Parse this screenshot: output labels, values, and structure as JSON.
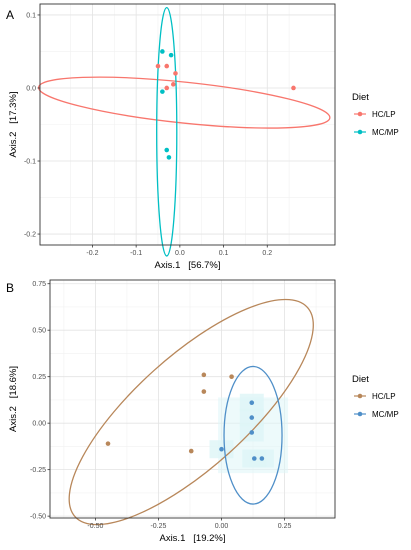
{
  "chart_data": [
    {
      "panel": "A",
      "type": "scatter",
      "xlabel": "Axis.1   [56.7%]",
      "ylabel": "Axis.2   [17.3%]",
      "xlim": [
        -0.32,
        0.355
      ],
      "ylim": [
        -0.215,
        0.115
      ],
      "xticks": [
        -0.2,
        -0.1,
        0.0,
        0.1,
        0.2
      ],
      "xtick_labels": [
        "-0.2",
        "-0.1",
        "0.0",
        "0.1",
        "0.2"
      ],
      "yticks": [
        -0.2,
        -0.1,
        0.0,
        0.1
      ],
      "ytick_labels": [
        "-0.2",
        "-0.1",
        "0.0",
        "0.1"
      ],
      "grid": true,
      "legend": {
        "title": "Diet",
        "position": "right",
        "entries": [
          "HC/LP",
          "MC/MP"
        ]
      },
      "series": [
        {
          "name": "HC/LP",
          "color": "#F8766D",
          "points": [
            [
              -0.05,
              0.03
            ],
            [
              -0.03,
              0.03
            ],
            [
              -0.01,
              0.02
            ],
            [
              -0.015,
              0.005
            ],
            [
              -0.03,
              0.0
            ],
            [
              0.26,
              0.0
            ]
          ]
        },
        {
          "name": "MC/MP",
          "color": "#00BFC4",
          "points": [
            [
              -0.04,
              0.05
            ],
            [
              -0.02,
              0.045
            ],
            [
              -0.04,
              -0.005
            ],
            [
              -0.03,
              -0.085
            ],
            [
              -0.025,
              -0.095
            ]
          ]
        }
      ],
      "ellipses": [
        {
          "series": "HC/LP",
          "cx": 0.01,
          "cy": -0.02,
          "rx": 0.335,
          "ry": 0.028,
          "angle_deg": -6,
          "color": "#F8766D"
        },
        {
          "series": "MC/MP",
          "cx": -0.03,
          "cy": -0.06,
          "rx": 0.023,
          "ry": 0.17,
          "angle_deg": 0,
          "color": "#00BFC4"
        }
      ]
    },
    {
      "panel": "B",
      "type": "scatter",
      "xlabel": "Axis.1   [19.2%]",
      "ylabel": "Axis.2   [18.6%]",
      "xlim": [
        -0.68,
        0.45
      ],
      "ylim": [
        -0.51,
        0.77
      ],
      "xticks": [
        -0.5,
        -0.25,
        0.0,
        0.25
      ],
      "xtick_labels": [
        "-0.50",
        "-0.25",
        "0.00",
        "0.25"
      ],
      "yticks": [
        -0.5,
        -0.25,
        0.0,
        0.25,
        0.5,
        0.75
      ],
      "ytick_labels": [
        "-0.50",
        "-0.25",
        "0.00",
        "0.25",
        "0.50",
        "0.75"
      ],
      "grid": true,
      "legend": {
        "title": "Diet",
        "position": "right",
        "entries": [
          "HC/LP",
          "MC/MP"
        ]
      },
      "series": [
        {
          "name": "HC/LP",
          "color": "#B8875A",
          "points": [
            [
              -0.45,
              -0.11
            ],
            [
              -0.12,
              -0.15
            ],
            [
              -0.07,
              0.26
            ],
            [
              -0.07,
              0.17
            ],
            [
              0.04,
              0.25
            ]
          ]
        },
        {
          "name": "MC/MP",
          "color": "#4F8FC8",
          "points": [
            [
              0.0,
              -0.14
            ],
            [
              0.12,
              0.11
            ],
            [
              0.12,
              0.03
            ],
            [
              0.12,
              -0.05
            ],
            [
              0.13,
              -0.19
            ],
            [
              0.16,
              -0.19
            ]
          ]
        }
      ],
      "ellipses": [
        {
          "series": "HC/LP",
          "cx": -0.12,
          "cy": 0.06,
          "rx": 0.62,
          "ry": 0.3,
          "angle_deg": 42,
          "color": "#B8875A"
        },
        {
          "series": "MC/MP",
          "cx": 0.125,
          "cy": -0.065,
          "rx": 0.115,
          "ry": 0.37,
          "angle_deg": 0,
          "color": "#4F8FC8"
        }
      ]
    }
  ],
  "panel_letters": [
    "A",
    "B"
  ],
  "colors": {
    "panel_background": "#ffffff",
    "panel_border": "#333333",
    "grid_major": "#e3e3e3",
    "grid_minor": "#f1f1f1",
    "confidence_band_fill": "#dff6f7"
  }
}
